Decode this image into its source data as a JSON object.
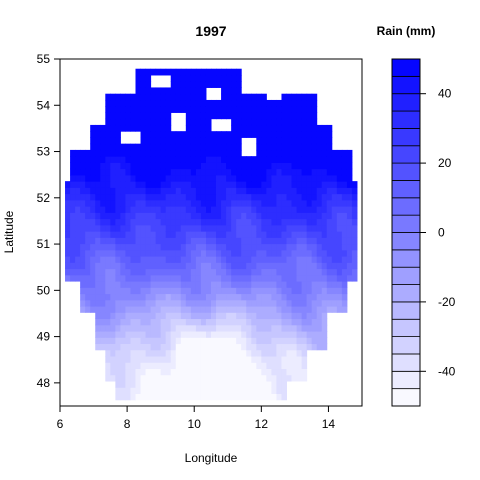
{
  "chart_data": {
    "type": "heatmap",
    "title": "1997",
    "xlabel": "Longitude",
    "ylabel": "Latitude",
    "xlim": [
      6,
      15
    ],
    "ylim": [
      47.5,
      55
    ],
    "x_ticks": [
      6,
      8,
      10,
      12,
      14
    ],
    "y_ticks": [
      48,
      49,
      50,
      51,
      52,
      53,
      54,
      55
    ],
    "legend": {
      "title": "Rain (mm)",
      "placement": "right",
      "range": [
        -50,
        50
      ],
      "ticks": [
        -40,
        -20,
        0,
        20,
        40
      ],
      "levels": [
        -50,
        -45,
        -40,
        -35,
        -30,
        -25,
        -20,
        -15,
        -10,
        -5,
        0,
        5,
        10,
        15,
        20,
        25,
        30,
        35,
        40,
        45,
        50
      ]
    },
    "colors": {
      "low": "#ffffff",
      "high": "#0000ff"
    },
    "grid": false,
    "region": "filled contour of rainfall anomaly over Germany; wetter (blue) in the north, drier (white) in the south"
  }
}
